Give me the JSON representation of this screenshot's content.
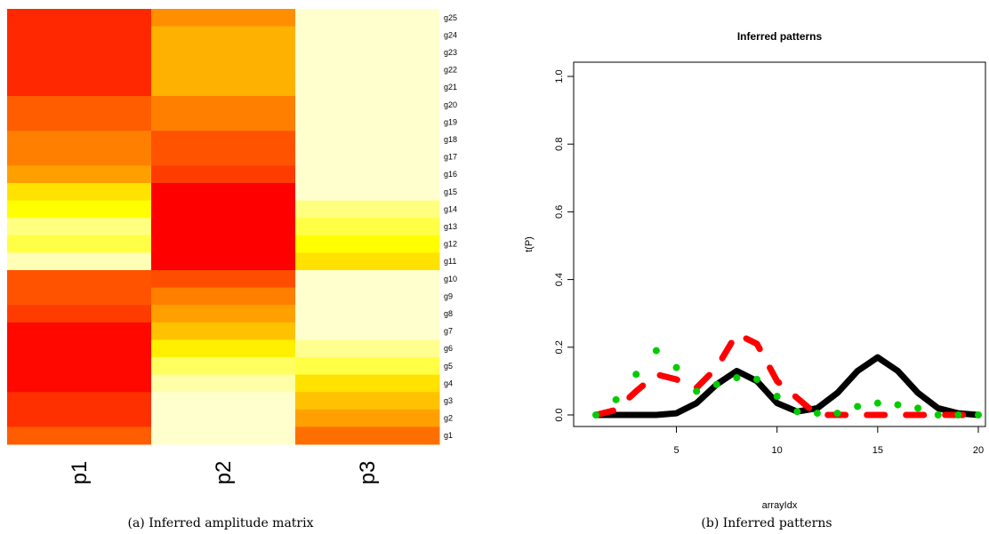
{
  "captions": {
    "a": "(a) Inferred amplitude matrix",
    "b": "(b) Inferred patterns"
  },
  "chart_data": [
    {
      "type": "heatmap",
      "x_categories": [
        "p1",
        "p2",
        "p3"
      ],
      "y_categories": [
        "g25",
        "g24",
        "g23",
        "g22",
        "g21",
        "g20",
        "g19",
        "g18",
        "g17",
        "g16",
        "g15",
        "g14",
        "g13",
        "g12",
        "g11",
        "g10",
        "g9",
        "g8",
        "g7",
        "g6",
        "g5",
        "g4",
        "g3",
        "g2",
        "g1"
      ],
      "colormap": "heat (red = high, pale yellow = low)",
      "values": [
        [
          0.9,
          0.6,
          0.02
        ],
        [
          0.9,
          0.5,
          0.02
        ],
        [
          0.9,
          0.5,
          0.02
        ],
        [
          0.9,
          0.5,
          0.02
        ],
        [
          0.9,
          0.5,
          0.02
        ],
        [
          0.75,
          0.65,
          0.02
        ],
        [
          0.75,
          0.65,
          0.02
        ],
        [
          0.65,
          0.78,
          0.02
        ],
        [
          0.65,
          0.78,
          0.02
        ],
        [
          0.55,
          0.85,
          0.02
        ],
        [
          0.35,
          1.0,
          0.02
        ],
        [
          0.25,
          1.0,
          0.12
        ],
        [
          0.12,
          1.0,
          0.18
        ],
        [
          0.18,
          1.0,
          0.25
        ],
        [
          0.05,
          1.0,
          0.35
        ],
        [
          0.78,
          0.8,
          0.02
        ],
        [
          0.78,
          0.65,
          0.02
        ],
        [
          0.85,
          0.55,
          0.02
        ],
        [
          0.98,
          0.45,
          0.02
        ],
        [
          0.98,
          0.3,
          0.1
        ],
        [
          0.98,
          0.15,
          0.18
        ],
        [
          0.98,
          0.07,
          0.35
        ],
        [
          0.88,
          0.02,
          0.45
        ],
        [
          0.88,
          0.02,
          0.55
        ],
        [
          0.75,
          0.02,
          0.7
        ]
      ]
    },
    {
      "type": "line",
      "title": "Inferred patterns",
      "xlabel": "arrayIdx",
      "ylabel": "t(P)",
      "xlim": [
        1,
        20
      ],
      "ylim": [
        0,
        1
      ],
      "x_ticks": [
        "5",
        "10",
        "15",
        "20"
      ],
      "y_ticks": [
        "0.0",
        "0.2",
        "0.4",
        "0.6",
        "0.8",
        "1.0"
      ],
      "x": [
        1,
        2,
        3,
        4,
        5,
        6,
        7,
        8,
        9,
        10,
        11,
        12,
        13,
        14,
        15,
        16,
        17,
        18,
        19,
        20
      ],
      "series": [
        {
          "style": "solid",
          "color": "#000000",
          "values": [
            0.0,
            0.0,
            0.0,
            0.0,
            0.005,
            0.035,
            0.09,
            0.13,
            0.1,
            0.035,
            0.01,
            0.02,
            0.065,
            0.13,
            0.17,
            0.13,
            0.065,
            0.02,
            0.005,
            0.0
          ]
        },
        {
          "style": "dashed",
          "color": "#ff0000",
          "values": [
            0.0,
            0.015,
            0.07,
            0.12,
            0.105,
            0.08,
            0.14,
            0.24,
            0.21,
            0.1,
            0.05,
            0.0,
            0.0,
            0.0,
            0.0,
            0.0,
            0.0,
            0.0,
            0.0,
            0.0
          ]
        },
        {
          "style": "dotted",
          "color": "#00cc00",
          "values": [
            0.0,
            0.045,
            0.12,
            0.19,
            0.14,
            0.07,
            0.09,
            0.11,
            0.105,
            0.055,
            0.01,
            0.005,
            0.005,
            0.025,
            0.035,
            0.03,
            0.02,
            0.0,
            0.0,
            0.0
          ]
        }
      ]
    }
  ]
}
